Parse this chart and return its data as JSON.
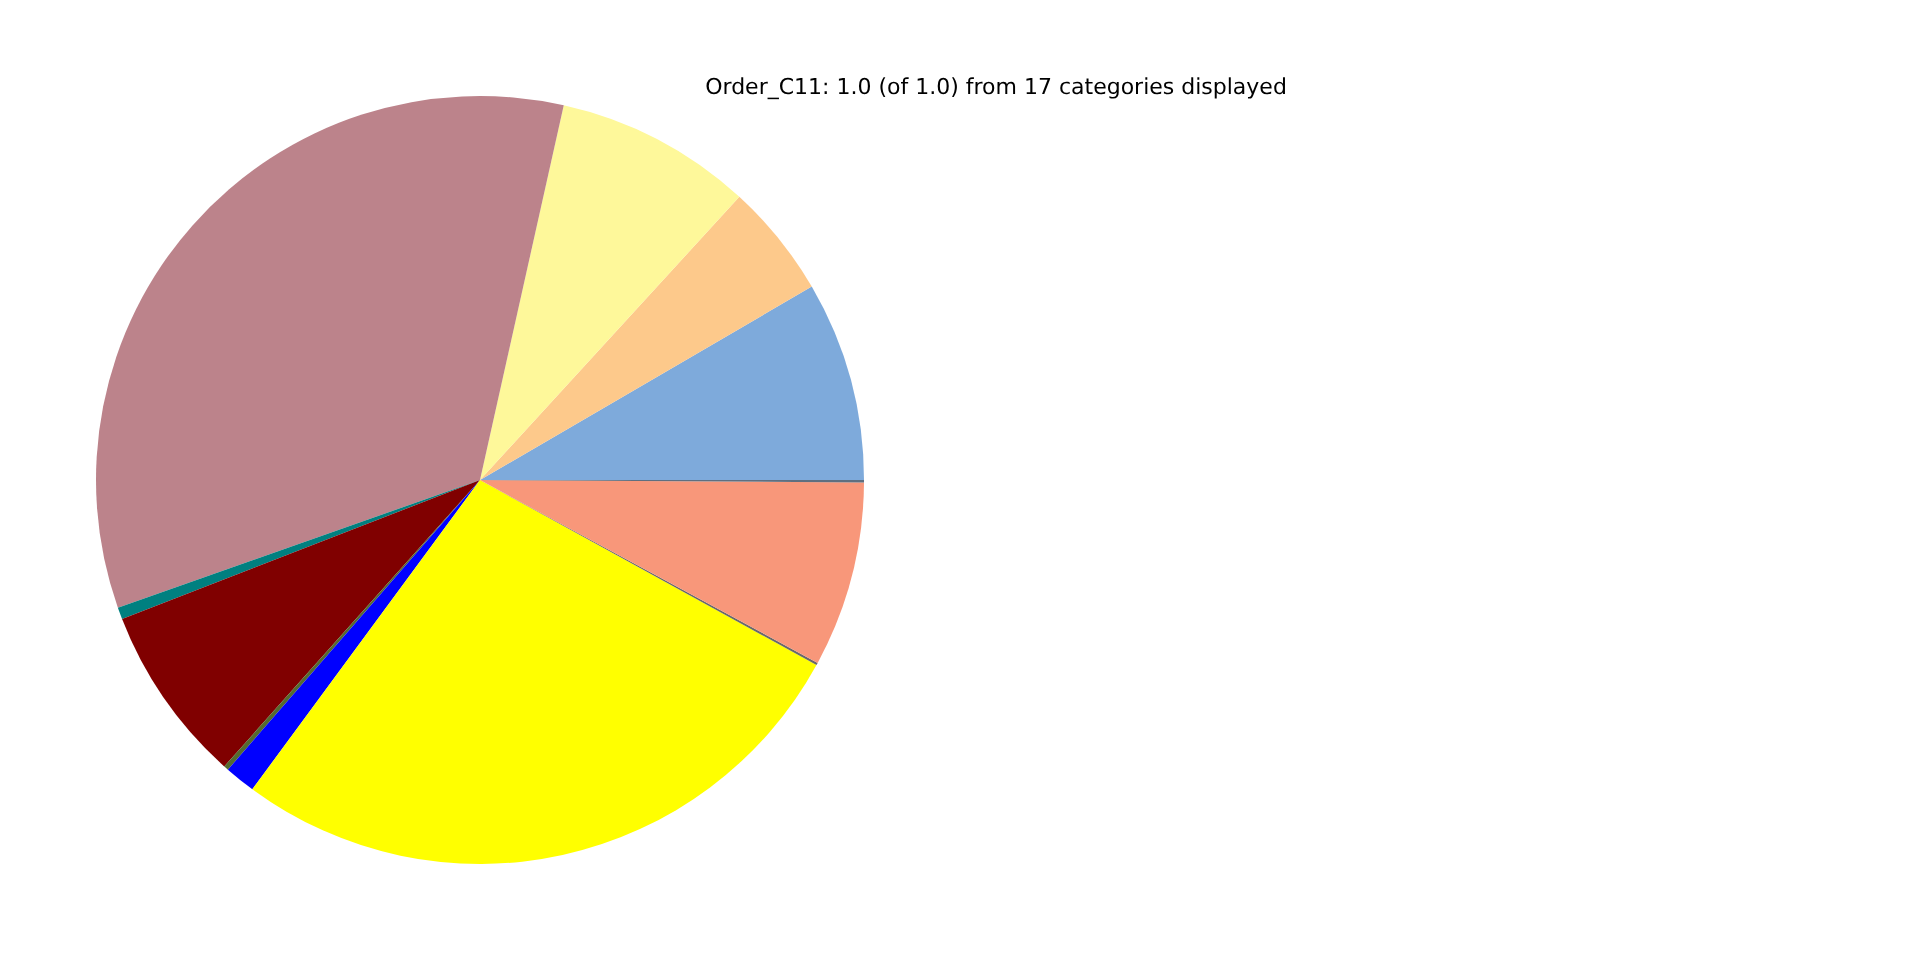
{
  "chart_data": {
    "type": "pie",
    "title": "Order_C11: 1.0 (of 1.0) from 17 categories displayed",
    "categories": [
      null,
      null,
      null,
      null,
      null,
      null,
      null,
      null,
      null,
      null,
      null,
      null
    ],
    "values": [
      8.4,
      4.8,
      8.3,
      33.9,
      0.5,
      7.5,
      0.2,
      1.3,
      27.1,
      0.1,
      7.8,
      0.1
    ],
    "colors": [
      "#7eaadb",
      "#fdc98b",
      "#fef89a",
      "#bc838b",
      "#008080",
      "#800000",
      "#556b2f",
      "#0000ff",
      "#ffff00",
      "#696969",
      "#f8977a",
      "#5f6f80"
    ]
  }
}
